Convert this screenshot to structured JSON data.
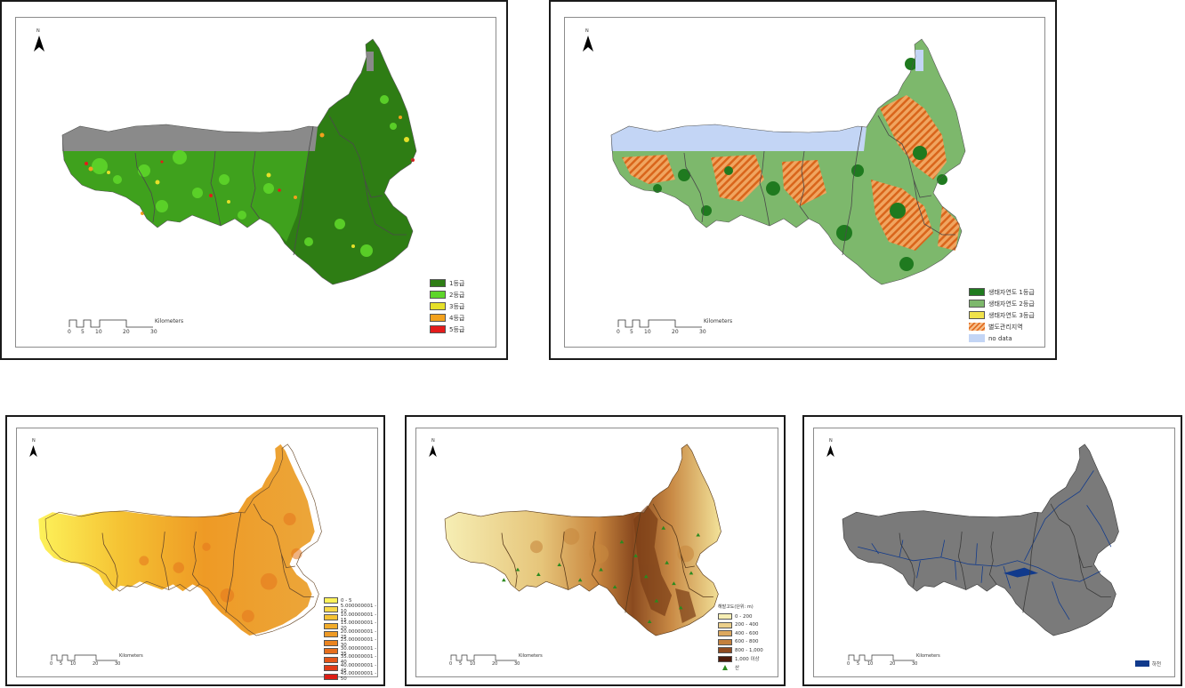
{
  "colors": {
    "green1": "#2e7d14",
    "green2": "#5ed62a",
    "yellow": "#e5e029",
    "orange": "#f3a11d",
    "red": "#e41b1b",
    "eco1": "#1f7a1f",
    "eco2": "#7db86c",
    "eco3": "#f0e24a",
    "hatch": "#e37b2c",
    "nodata": "#c3d5f5",
    "grey": "#7a7a7a",
    "river": "#113a8c"
  },
  "north_label": "N",
  "scalebar": {
    "ticks": [
      "0",
      "5",
      "10",
      "20",
      "30"
    ],
    "unit": "Kilometers"
  },
  "panel1": {
    "legend": [
      "1등급",
      "2등급",
      "3등급",
      "4등급",
      "5등급"
    ]
  },
  "panel2": {
    "legend": [
      "생태자연도 1등급",
      "생태자연도 2등급",
      "생태자연도 3등급",
      "별도관리지역",
      "no data"
    ]
  },
  "panel3": {
    "legend": [
      "0 - 5",
      "5.000000001 - 10",
      "10.00000001 - 15",
      "15.00000001 - 20",
      "20.00000001 - 25",
      "25.00000001 - 30",
      "30.00000001 - 35",
      "35.00000001 - 40",
      "40.00000001 - 45",
      "45.00000001 - 50"
    ]
  },
  "panel4": {
    "legend_title": "해발고도(단위: m)",
    "legend": [
      "0 - 200",
      "200 - 400",
      "400 - 600",
      "600 - 800",
      "800 - 1,000",
      "1,000 이상"
    ],
    "peak_label": "산"
  },
  "panel5": {
    "legend": [
      "하천"
    ]
  }
}
